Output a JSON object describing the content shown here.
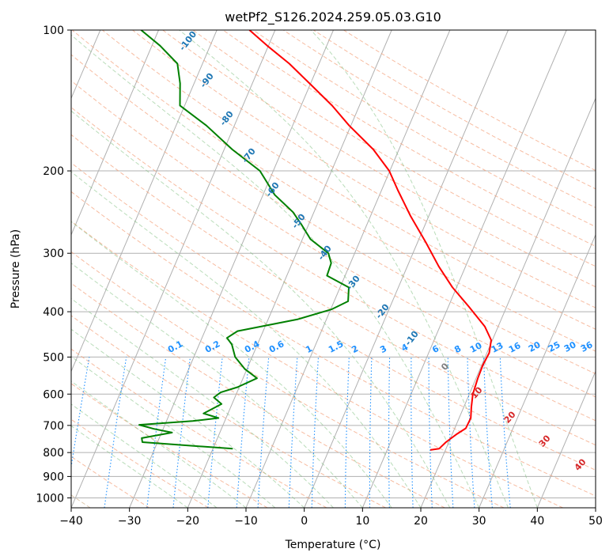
{
  "chart_data": {
    "type": "line",
    "title": "wetPf2_S126.2024.259.05.03.G10",
    "xlabel": "Temperature (°C)",
    "ylabel": "Pressure (hPa)",
    "xlim": [
      -40,
      50
    ],
    "ylim": [
      1050,
      100
    ],
    "y_scale": "log",
    "x_ticks": [
      -40,
      -30,
      -20,
      -10,
      0,
      10,
      20,
      30,
      40,
      50
    ],
    "y_ticks": [
      100,
      200,
      300,
      400,
      500,
      600,
      700,
      800,
      900,
      1000
    ],
    "grid": true,
    "skew": 35,
    "series": [
      {
        "color": "#ff0000",
        "points": [
          [
            17.4,
            790
          ],
          [
            18.8,
            785
          ],
          [
            19.5,
            760
          ],
          [
            20.8,
            730
          ],
          [
            21.9,
            710
          ],
          [
            22.0,
            675
          ],
          [
            21.3,
            640
          ],
          [
            20.6,
            600
          ],
          [
            20.3,
            555
          ],
          [
            20.2,
            520
          ],
          [
            20.4,
            490
          ],
          [
            19.8,
            460
          ],
          [
            17.7,
            430
          ],
          [
            13.5,
            390
          ],
          [
            9.3,
            355
          ],
          [
            5.4,
            320
          ],
          [
            1.5,
            285
          ],
          [
            -3.1,
            250
          ],
          [
            -7.2,
            220
          ],
          [
            -10.1,
            200
          ],
          [
            -14.4,
            180
          ],
          [
            -20.3,
            160
          ],
          [
            -24.7,
            145
          ],
          [
            -30.2,
            130
          ],
          [
            -35.1,
            118
          ],
          [
            -40.2,
            108
          ],
          [
            -44.4,
            100
          ]
        ]
      },
      {
        "color": "#008000",
        "points": [
          [
            -16.6,
            785
          ],
          [
            -32.6,
            760
          ],
          [
            -33.0,
            745
          ],
          [
            -28.2,
            725
          ],
          [
            -31.6,
            712
          ],
          [
            -34.4,
            698
          ],
          [
            -25.5,
            685
          ],
          [
            -21.3,
            675
          ],
          [
            -24.2,
            660
          ],
          [
            -21.8,
            630
          ],
          [
            -23.6,
            610
          ],
          [
            -22.8,
            595
          ],
          [
            -20.3,
            580
          ],
          [
            -17.6,
            555
          ],
          [
            -20.4,
            530
          ],
          [
            -22.9,
            500
          ],
          [
            -24.4,
            470
          ],
          [
            -25.7,
            455
          ],
          [
            -24.4,
            440
          ],
          [
            -14.9,
            415
          ],
          [
            -9.8,
            395
          ],
          [
            -7.6,
            380
          ],
          [
            -8.5,
            355
          ],
          [
            -13.1,
            335
          ],
          [
            -13.3,
            315
          ],
          [
            -14.5,
            300
          ],
          [
            -18.6,
            280
          ],
          [
            -21.3,
            260
          ],
          [
            -23.6,
            245
          ],
          [
            -28.0,
            225
          ],
          [
            -32.3,
            200
          ],
          [
            -38.6,
            180
          ],
          [
            -44.8,
            160
          ],
          [
            -50.8,
            145
          ],
          [
            -52.4,
            130
          ],
          [
            -54.3,
            118
          ],
          [
            -58.6,
            108
          ],
          [
            -63.0,
            100
          ]
        ]
      }
    ],
    "dry_adiabats": [
      -100,
      -90,
      -80,
      -70,
      -60,
      -50,
      -40,
      -30,
      -20,
      -10
    ],
    "moist_adiabats": [
      0,
      10,
      20,
      30,
      40
    ],
    "mixing_ratios": [
      "0.1",
      "0.2",
      "0.4",
      "0.6",
      "1",
      "1.5",
      "2",
      "3",
      "4",
      "6",
      "8",
      "10",
      "13",
      "16",
      "20",
      "25",
      "30",
      "36"
    ]
  }
}
